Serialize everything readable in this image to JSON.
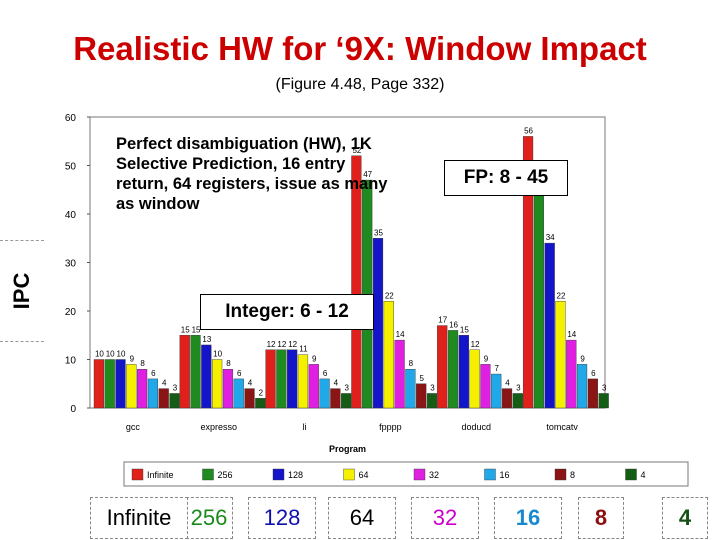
{
  "slide": {
    "title": "Realistic HW for ‘9X: Window Impact",
    "subtitle": "(Figure 4.48, Page 332)"
  },
  "annotations": {
    "note": "Perfect disambiguation (HW), 1K Selective Prediction, 16 entry return, 64 registers, issue as many as window",
    "fp_box": "FP: 8 - 45",
    "int_box": "Integer: 6 - 12",
    "ipc_label": "IPC"
  },
  "legend_keys": [
    {
      "label": "Infinite",
      "color": "#000000"
    },
    {
      "label": "256",
      "color": "#1a8a1a"
    },
    {
      "label": "128",
      "color": "#1010b0"
    },
    {
      "label": "64",
      "color": "#000000"
    },
    {
      "label": "32",
      "color": "#cc00cc"
    },
    {
      "label": "16",
      "color": "#1a8ad0"
    },
    {
      "label": "8",
      "color": "#8b1010"
    },
    {
      "label": "4",
      "color": "#145214"
    }
  ],
  "chart_data": {
    "type": "bar",
    "xlabel": "Program",
    "ylabel": "",
    "ylim": [
      0,
      60
    ],
    "yticks": [
      0,
      10,
      20,
      30,
      40,
      50,
      60
    ],
    "categories": [
      "gcc",
      "expresso",
      "li",
      "fpppp",
      "doducd",
      "tomcatv"
    ],
    "series": [
      {
        "name": "Infinite",
        "color": "#e0201a",
        "values": [
          10,
          15,
          12,
          52,
          17,
          56
        ],
        "labels": [
          "10",
          "15",
          "12",
          "52",
          "17",
          "56"
        ]
      },
      {
        "name": "256",
        "color": "#1f8a1f",
        "values": [
          10,
          15,
          12,
          47,
          16,
          45
        ],
        "labels": [
          "10",
          "15",
          "12",
          "47",
          "16",
          "45"
        ]
      },
      {
        "name": "128",
        "color": "#1414c8",
        "values": [
          10,
          13,
          12,
          35,
          15,
          34
        ],
        "labels": [
          "10",
          "13",
          "12",
          "35",
          "15",
          "34"
        ]
      },
      {
        "name": "64",
        "color": "#f4f000",
        "values": [
          9,
          10,
          11,
          22,
          12,
          22
        ],
        "labels": [
          "9",
          "10",
          "11",
          "22",
          "12",
          "22"
        ]
      },
      {
        "name": "32",
        "color": "#e020e0",
        "values": [
          8,
          8,
          9,
          14,
          9,
          14
        ],
        "labels": [
          "8",
          "8",
          "9",
          "14",
          "9",
          "14"
        ]
      },
      {
        "name": "16",
        "color": "#20a8e8",
        "values": [
          6,
          6,
          6,
          8,
          7,
          9
        ],
        "labels": [
          "6",
          "6",
          "6",
          "8",
          "7",
          "9"
        ]
      },
      {
        "name": "8",
        "color": "#8b1414",
        "values": [
          4,
          4,
          4,
          5,
          4,
          6
        ],
        "labels": [
          "4",
          "4",
          "4",
          "5",
          "4",
          "6"
        ]
      },
      {
        "name": "4",
        "color": "#155d15",
        "values": [
          3,
          2,
          3,
          3,
          3,
          3
        ],
        "labels": [
          "3",
          "2",
          "3",
          "3",
          "3",
          "3"
        ]
      }
    ]
  }
}
